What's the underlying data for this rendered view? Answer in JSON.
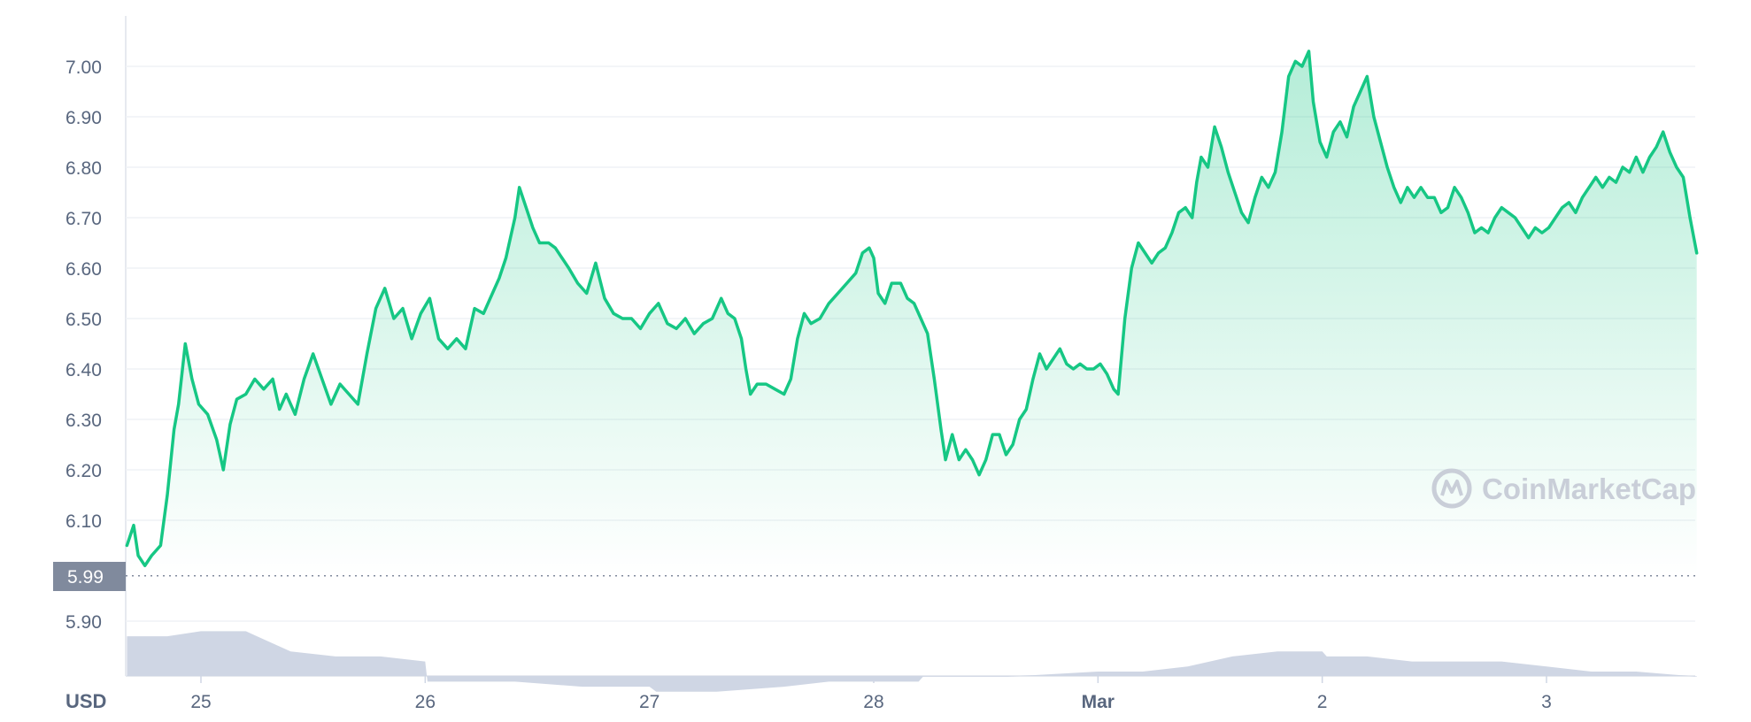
{
  "chart_data": {
    "type": "area",
    "currency_label": "USD",
    "watermark": "CoinMarketCap",
    "reference_label": "5.99",
    "ylim": [
      5.8,
      7.1
    ],
    "y_ticks": [
      "5.90",
      "6.10",
      "6.20",
      "6.30",
      "6.40",
      "6.50",
      "6.60",
      "6.70",
      "6.80",
      "6.90",
      "7.00"
    ],
    "x_ticks": [
      {
        "label": "25",
        "day": 1,
        "bold": false
      },
      {
        "label": "26",
        "day": 2,
        "bold": false
      },
      {
        "label": "27",
        "day": 3,
        "bold": false
      },
      {
        "label": "28",
        "day": 4,
        "bold": false
      },
      {
        "label": "Mar",
        "day": 5,
        "bold": true
      },
      {
        "label": "2",
        "day": 6,
        "bold": false
      },
      {
        "label": "3",
        "day": 7,
        "bold": false
      }
    ],
    "xlim": [
      0.67,
      7.67
    ],
    "series": [
      {
        "type": "line",
        "color": "#16c784",
        "points": [
          [
            0.67,
            6.05
          ],
          [
            0.7,
            6.09
          ],
          [
            0.72,
            6.03
          ],
          [
            0.75,
            6.01
          ],
          [
            0.78,
            6.03
          ],
          [
            0.82,
            6.05
          ],
          [
            0.85,
            6.15
          ],
          [
            0.88,
            6.28
          ],
          [
            0.9,
            6.33
          ],
          [
            0.93,
            6.45
          ],
          [
            0.96,
            6.38
          ],
          [
            0.99,
            6.33
          ],
          [
            1.03,
            6.31
          ],
          [
            1.07,
            6.26
          ],
          [
            1.1,
            6.2
          ],
          [
            1.13,
            6.29
          ],
          [
            1.16,
            6.34
          ],
          [
            1.2,
            6.35
          ],
          [
            1.24,
            6.38
          ],
          [
            1.28,
            6.36
          ],
          [
            1.32,
            6.38
          ],
          [
            1.35,
            6.32
          ],
          [
            1.38,
            6.35
          ],
          [
            1.42,
            6.31
          ],
          [
            1.46,
            6.38
          ],
          [
            1.5,
            6.43
          ],
          [
            1.54,
            6.38
          ],
          [
            1.58,
            6.33
          ],
          [
            1.62,
            6.37
          ],
          [
            1.66,
            6.35
          ],
          [
            1.7,
            6.33
          ],
          [
            1.74,
            6.43
          ],
          [
            1.78,
            6.52
          ],
          [
            1.82,
            6.56
          ],
          [
            1.86,
            6.5
          ],
          [
            1.9,
            6.52
          ],
          [
            1.94,
            6.46
          ],
          [
            1.98,
            6.51
          ],
          [
            2.02,
            6.54
          ],
          [
            2.06,
            6.46
          ],
          [
            2.1,
            6.44
          ],
          [
            2.14,
            6.46
          ],
          [
            2.18,
            6.44
          ],
          [
            2.22,
            6.52
          ],
          [
            2.26,
            6.51
          ],
          [
            2.3,
            6.55
          ],
          [
            2.33,
            6.58
          ],
          [
            2.36,
            6.62
          ],
          [
            2.38,
            6.66
          ],
          [
            2.4,
            6.7
          ],
          [
            2.42,
            6.76
          ],
          [
            2.45,
            6.72
          ],
          [
            2.48,
            6.68
          ],
          [
            2.51,
            6.65
          ],
          [
            2.55,
            6.65
          ],
          [
            2.58,
            6.64
          ],
          [
            2.61,
            6.62
          ],
          [
            2.64,
            6.6
          ],
          [
            2.68,
            6.57
          ],
          [
            2.72,
            6.55
          ],
          [
            2.76,
            6.61
          ],
          [
            2.8,
            6.54
          ],
          [
            2.84,
            6.51
          ],
          [
            2.88,
            6.5
          ],
          [
            2.92,
            6.5
          ],
          [
            2.96,
            6.48
          ],
          [
            3.0,
            6.51
          ],
          [
            3.04,
            6.53
          ],
          [
            3.08,
            6.49
          ],
          [
            3.12,
            6.48
          ],
          [
            3.16,
            6.5
          ],
          [
            3.2,
            6.47
          ],
          [
            3.24,
            6.49
          ],
          [
            3.28,
            6.5
          ],
          [
            3.32,
            6.54
          ],
          [
            3.35,
            6.51
          ],
          [
            3.38,
            6.5
          ],
          [
            3.41,
            6.46
          ],
          [
            3.43,
            6.4
          ],
          [
            3.45,
            6.35
          ],
          [
            3.48,
            6.37
          ],
          [
            3.52,
            6.37
          ],
          [
            3.56,
            6.36
          ],
          [
            3.6,
            6.35
          ],
          [
            3.63,
            6.38
          ],
          [
            3.66,
            6.46
          ],
          [
            3.69,
            6.51
          ],
          [
            3.72,
            6.49
          ],
          [
            3.76,
            6.5
          ],
          [
            3.8,
            6.53
          ],
          [
            3.84,
            6.55
          ],
          [
            3.88,
            6.57
          ],
          [
            3.92,
            6.59
          ],
          [
            3.95,
            6.63
          ],
          [
            3.98,
            6.64
          ],
          [
            4.0,
            6.62
          ],
          [
            4.02,
            6.55
          ],
          [
            4.05,
            6.53
          ],
          [
            4.08,
            6.57
          ],
          [
            4.12,
            6.57
          ],
          [
            4.15,
            6.54
          ],
          [
            4.18,
            6.53
          ],
          [
            4.21,
            6.5
          ],
          [
            4.24,
            6.47
          ],
          [
            4.27,
            6.38
          ],
          [
            4.3,
            6.28
          ],
          [
            4.32,
            6.22
          ],
          [
            4.35,
            6.27
          ],
          [
            4.38,
            6.22
          ],
          [
            4.41,
            6.24
          ],
          [
            4.44,
            6.22
          ],
          [
            4.47,
            6.19
          ],
          [
            4.5,
            6.22
          ],
          [
            4.53,
            6.27
          ],
          [
            4.56,
            6.27
          ],
          [
            4.59,
            6.23
          ],
          [
            4.62,
            6.25
          ],
          [
            4.65,
            6.3
          ],
          [
            4.68,
            6.32
          ],
          [
            4.71,
            6.38
          ],
          [
            4.74,
            6.43
          ],
          [
            4.77,
            6.4
          ],
          [
            4.8,
            6.42
          ],
          [
            4.83,
            6.44
          ],
          [
            4.86,
            6.41
          ],
          [
            4.89,
            6.4
          ],
          [
            4.92,
            6.41
          ],
          [
            4.95,
            6.4
          ],
          [
            4.98,
            6.4
          ],
          [
            5.01,
            6.41
          ],
          [
            5.04,
            6.39
          ],
          [
            5.07,
            6.36
          ],
          [
            5.09,
            6.35
          ],
          [
            5.12,
            6.5
          ],
          [
            5.15,
            6.6
          ],
          [
            5.18,
            6.65
          ],
          [
            5.21,
            6.63
          ],
          [
            5.24,
            6.61
          ],
          [
            5.27,
            6.63
          ],
          [
            5.3,
            6.64
          ],
          [
            5.33,
            6.67
          ],
          [
            5.36,
            6.71
          ],
          [
            5.39,
            6.72
          ],
          [
            5.42,
            6.7
          ],
          [
            5.44,
            6.77
          ],
          [
            5.46,
            6.82
          ],
          [
            5.49,
            6.8
          ],
          [
            5.52,
            6.88
          ],
          [
            5.55,
            6.84
          ],
          [
            5.58,
            6.79
          ],
          [
            5.61,
            6.75
          ],
          [
            5.64,
            6.71
          ],
          [
            5.67,
            6.69
          ],
          [
            5.7,
            6.74
          ],
          [
            5.73,
            6.78
          ],
          [
            5.76,
            6.76
          ],
          [
            5.79,
            6.79
          ],
          [
            5.82,
            6.87
          ],
          [
            5.85,
            6.98
          ],
          [
            5.88,
            7.01
          ],
          [
            5.91,
            7.0
          ],
          [
            5.94,
            7.03
          ],
          [
            5.96,
            6.93
          ],
          [
            5.99,
            6.85
          ],
          [
            6.02,
            6.82
          ],
          [
            6.05,
            6.87
          ],
          [
            6.08,
            6.89
          ],
          [
            6.11,
            6.86
          ],
          [
            6.14,
            6.92
          ],
          [
            6.17,
            6.95
          ],
          [
            6.2,
            6.98
          ],
          [
            6.23,
            6.9
          ],
          [
            6.26,
            6.85
          ],
          [
            6.29,
            6.8
          ],
          [
            6.32,
            6.76
          ],
          [
            6.35,
            6.73
          ],
          [
            6.38,
            6.76
          ],
          [
            6.41,
            6.74
          ],
          [
            6.44,
            6.76
          ],
          [
            6.47,
            6.74
          ],
          [
            6.5,
            6.74
          ],
          [
            6.53,
            6.71
          ],
          [
            6.56,
            6.72
          ],
          [
            6.59,
            6.76
          ],
          [
            6.62,
            6.74
          ],
          [
            6.65,
            6.71
          ],
          [
            6.68,
            6.67
          ],
          [
            6.71,
            6.68
          ],
          [
            6.74,
            6.67
          ],
          [
            6.77,
            6.7
          ],
          [
            6.8,
            6.72
          ],
          [
            6.83,
            6.71
          ],
          [
            6.86,
            6.7
          ],
          [
            6.89,
            6.68
          ],
          [
            6.92,
            6.66
          ],
          [
            6.95,
            6.68
          ],
          [
            6.98,
            6.67
          ],
          [
            7.01,
            6.68
          ],
          [
            7.04,
            6.7
          ],
          [
            7.07,
            6.72
          ],
          [
            7.1,
            6.73
          ],
          [
            7.13,
            6.71
          ],
          [
            7.16,
            6.74
          ],
          [
            7.19,
            6.76
          ],
          [
            7.22,
            6.78
          ],
          [
            7.25,
            6.76
          ],
          [
            7.28,
            6.78
          ],
          [
            7.31,
            6.77
          ],
          [
            7.34,
            6.8
          ],
          [
            7.37,
            6.79
          ],
          [
            7.4,
            6.82
          ],
          [
            7.43,
            6.79
          ],
          [
            7.46,
            6.82
          ],
          [
            7.49,
            6.84
          ],
          [
            7.52,
            6.87
          ],
          [
            7.55,
            6.83
          ],
          [
            7.58,
            6.8
          ],
          [
            7.61,
            6.78
          ],
          [
            7.64,
            6.7
          ],
          [
            7.67,
            6.63
          ]
        ]
      },
      {
        "type": "volume",
        "color": "#cfd6e4",
        "points": [
          [
            0.67,
            5.87
          ],
          [
            0.85,
            5.87
          ],
          [
            1.0,
            5.88
          ],
          [
            1.2,
            5.88
          ],
          [
            1.25,
            5.87
          ],
          [
            1.4,
            5.84
          ],
          [
            1.6,
            5.83
          ],
          [
            1.8,
            5.83
          ],
          [
            2.0,
            5.82
          ],
          [
            2.01,
            5.78
          ],
          [
            2.1,
            5.78
          ],
          [
            2.4,
            5.78
          ],
          [
            2.7,
            5.77
          ],
          [
            3.0,
            5.77
          ],
          [
            3.03,
            5.76
          ],
          [
            3.3,
            5.76
          ],
          [
            3.6,
            5.77
          ],
          [
            3.8,
            5.78
          ],
          [
            4.0,
            5.78
          ],
          [
            4.2,
            5.78
          ],
          [
            4.22,
            5.79
          ],
          [
            4.6,
            5.79
          ],
          [
            5.0,
            5.8
          ],
          [
            5.2,
            5.8
          ],
          [
            5.4,
            5.81
          ],
          [
            5.6,
            5.83
          ],
          [
            5.8,
            5.84
          ],
          [
            6.0,
            5.84
          ],
          [
            6.02,
            5.83
          ],
          [
            6.2,
            5.83
          ],
          [
            6.4,
            5.82
          ],
          [
            6.6,
            5.82
          ],
          [
            6.8,
            5.82
          ],
          [
            7.0,
            5.81
          ],
          [
            7.2,
            5.8
          ],
          [
            7.4,
            5.8
          ],
          [
            7.67,
            5.79
          ]
        ]
      }
    ]
  }
}
